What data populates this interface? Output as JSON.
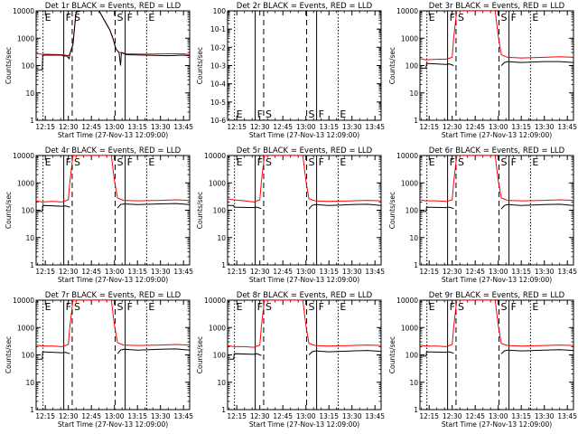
{
  "chart_data": {
    "type": "line",
    "common": {
      "xlabel": "Start Time (27-Nov-13 12:09:00)",
      "ylabel": "Counts/sec",
      "x_ticks": [
        "12:15",
        "12:30",
        "12:45",
        "13:00",
        "13:15",
        "13:30",
        "13:45"
      ],
      "x_tick_minutes": [
        15,
        30,
        45,
        60,
        75,
        90,
        105
      ],
      "xlim_minutes": [
        9,
        109
      ],
      "y_scale": "log",
      "ylim": [
        1,
        10000
      ],
      "y_ticks": [
        "1",
        "10",
        "100",
        "1000",
        "10000"
      ],
      "series_colors": {
        "events": "#000000",
        "lld": "#ff0000"
      },
      "markers": [
        {
          "label": "E",
          "minute": 13.5,
          "style": "dotted"
        },
        {
          "label": "F",
          "minute": 27,
          "style": "solid"
        },
        {
          "label": "S",
          "minute": 32.5,
          "style": "dashed"
        },
        {
          "label": "S",
          "minute": 60.5,
          "style": "dashed"
        },
        {
          "label": "F",
          "minute": 67,
          "style": "solid"
        },
        {
          "label": "E",
          "minute": 81,
          "style": "dotted"
        }
      ]
    },
    "panels": [
      {
        "title": "Det 1r BLACK = Events, RED = LLD",
        "kind": "big",
        "events": [
          [
            9,
            70
          ],
          [
            13,
            70
          ],
          [
            13.3,
            240
          ],
          [
            26,
            240
          ],
          [
            27,
            220
          ],
          [
            29,
            225
          ],
          [
            30.5,
            180
          ],
          [
            31,
            270
          ],
          [
            33,
            600
          ],
          [
            35,
            9000
          ],
          [
            38,
            10000
          ],
          [
            50,
            10000
          ],
          [
            53,
            5000
          ],
          [
            57,
            2000
          ],
          [
            59,
            1000
          ],
          [
            61,
            400
          ],
          [
            63,
            300
          ],
          [
            64,
            100
          ],
          [
            64.5,
            300
          ],
          [
            68,
            250
          ],
          [
            80,
            240
          ],
          [
            95,
            230
          ],
          [
            105,
            240
          ],
          [
            109,
            230
          ]
        ],
        "lld": [
          [
            9,
            270
          ],
          [
            13,
            260
          ],
          [
            26,
            250
          ],
          [
            30,
            230
          ],
          [
            31,
            270
          ],
          [
            33,
            600
          ],
          [
            35,
            9000
          ],
          [
            38,
            10000
          ],
          [
            50,
            10000
          ],
          [
            53,
            5000
          ],
          [
            57,
            2000
          ],
          [
            59,
            1000
          ],
          [
            61,
            400
          ],
          [
            63,
            300
          ],
          [
            64.5,
            300
          ],
          [
            68,
            270
          ],
          [
            80,
            260
          ],
          [
            95,
            270
          ],
          [
            105,
            270
          ],
          [
            109,
            250
          ]
        ]
      },
      {
        "title": "Det 2r BLACK = Events, RED = LLD",
        "kind": "empty",
        "y_ticks": [
          "10-6",
          "10-5",
          "10-4",
          "10-3",
          "10-2",
          "10-1",
          "100"
        ],
        "events": [],
        "lld": []
      },
      {
        "title": "Det 3r BLACK = Events, RED = LLD",
        "kind": "std",
        "events": [
          [
            9,
            80
          ],
          [
            13,
            80
          ],
          [
            13.3,
            120
          ],
          [
            26,
            110
          ],
          [
            28,
            115
          ],
          [
            30,
            105
          ],
          [
            31,
            100
          ]
        ],
        "events2": [
          [
            62,
            100
          ],
          [
            64,
            130
          ],
          [
            66,
            140
          ],
          [
            75,
            130
          ],
          [
            90,
            140
          ],
          [
            100,
            140
          ],
          [
            109,
            130
          ]
        ],
        "lld": [
          [
            9,
            180
          ],
          [
            13,
            160
          ],
          [
            20,
            170
          ],
          [
            26,
            170
          ],
          [
            30,
            200
          ],
          [
            31,
            1100
          ],
          [
            33,
            10000
          ],
          [
            58,
            10000
          ],
          [
            60,
            1200
          ],
          [
            62,
            250
          ],
          [
            66,
            200
          ],
          [
            75,
            190
          ],
          [
            90,
            200
          ],
          [
            100,
            210
          ],
          [
            109,
            200
          ]
        ]
      },
      {
        "title": "Det 4r BLACK = Events, RED = LLD",
        "kind": "std",
        "events": [
          [
            9,
            90
          ],
          [
            13,
            90
          ],
          [
            13.3,
            150
          ],
          [
            26,
            140
          ],
          [
            28,
            145
          ],
          [
            30,
            135
          ],
          [
            31,
            130
          ]
        ],
        "events2": [
          [
            62,
            120
          ],
          [
            64,
            160
          ],
          [
            66,
            170
          ],
          [
            75,
            160
          ],
          [
            90,
            170
          ],
          [
            100,
            175
          ],
          [
            109,
            160
          ]
        ],
        "lld": [
          [
            9,
            220
          ],
          [
            13,
            200
          ],
          [
            20,
            210
          ],
          [
            26,
            200
          ],
          [
            30,
            240
          ],
          [
            31,
            1100
          ],
          [
            33,
            10000
          ],
          [
            58,
            10000
          ],
          [
            60,
            1200
          ],
          [
            62,
            280
          ],
          [
            66,
            230
          ],
          [
            75,
            220
          ],
          [
            90,
            230
          ],
          [
            100,
            240
          ],
          [
            109,
            230
          ]
        ]
      },
      {
        "title": "Det 5r BLACK = Events, RED = LLD",
        "kind": "std",
        "events": [
          [
            9,
            150
          ],
          [
            13,
            150
          ],
          [
            13.3,
            130
          ],
          [
            26,
            125
          ],
          [
            28,
            130
          ],
          [
            30,
            120
          ],
          [
            31,
            115
          ]
        ],
        "events2": [
          [
            62,
            110
          ],
          [
            64,
            150
          ],
          [
            66,
            160
          ],
          [
            75,
            150
          ],
          [
            90,
            160
          ],
          [
            100,
            165
          ],
          [
            109,
            150
          ]
        ],
        "lld": [
          [
            9,
            260
          ],
          [
            13,
            240
          ],
          [
            20,
            220
          ],
          [
            26,
            200
          ],
          [
            30,
            240
          ],
          [
            31,
            1100
          ],
          [
            33,
            10000
          ],
          [
            58,
            10000
          ],
          [
            60,
            1200
          ],
          [
            62,
            260
          ],
          [
            66,
            220
          ],
          [
            75,
            210
          ],
          [
            90,
            220
          ],
          [
            100,
            230
          ],
          [
            109,
            220
          ]
        ]
      },
      {
        "title": "Det 6r BLACK = Events, RED = LLD",
        "kind": "std",
        "events": [
          [
            9,
            90
          ],
          [
            13,
            90
          ],
          [
            13.3,
            130
          ],
          [
            26,
            125
          ],
          [
            28,
            130
          ],
          [
            30,
            120
          ],
          [
            31,
            115
          ]
        ],
        "events2": [
          [
            62,
            110
          ],
          [
            64,
            150
          ],
          [
            66,
            160
          ],
          [
            75,
            150
          ],
          [
            90,
            160
          ],
          [
            100,
            165
          ],
          [
            109,
            150
          ]
        ],
        "lld": [
          [
            9,
            240
          ],
          [
            13,
            220
          ],
          [
            20,
            220
          ],
          [
            26,
            210
          ],
          [
            30,
            240
          ],
          [
            31,
            1100
          ],
          [
            33,
            10000
          ],
          [
            58,
            10000
          ],
          [
            60,
            1200
          ],
          [
            62,
            280
          ],
          [
            66,
            230
          ],
          [
            75,
            220
          ],
          [
            90,
            230
          ],
          [
            100,
            240
          ],
          [
            109,
            230
          ]
        ]
      },
      {
        "title": "Det 7r BLACK = Events, RED = LLD",
        "kind": "std",
        "events": [
          [
            9,
            70
          ],
          [
            13,
            70
          ],
          [
            13.3,
            130
          ],
          [
            26,
            120
          ],
          [
            28,
            125
          ],
          [
            30,
            115
          ],
          [
            31,
            110
          ]
        ],
        "events2": [
          [
            62,
            110
          ],
          [
            64,
            150
          ],
          [
            66,
            160
          ],
          [
            75,
            150
          ],
          [
            90,
            160
          ],
          [
            100,
            165
          ],
          [
            109,
            150
          ]
        ],
        "lld": [
          [
            9,
            230
          ],
          [
            13,
            210
          ],
          [
            20,
            210
          ],
          [
            26,
            200
          ],
          [
            30,
            240
          ],
          [
            31,
            1100
          ],
          [
            33,
            10000
          ],
          [
            58,
            10000
          ],
          [
            60,
            1200
          ],
          [
            62,
            280
          ],
          [
            66,
            230
          ],
          [
            75,
            220
          ],
          [
            90,
            230
          ],
          [
            100,
            240
          ],
          [
            109,
            230
          ]
        ]
      },
      {
        "title": "Det 8r BLACK = Events, RED = LLD",
        "kind": "std",
        "events": [
          [
            9,
            70
          ],
          [
            13,
            70
          ],
          [
            13.3,
            110
          ],
          [
            26,
            105
          ],
          [
            28,
            110
          ],
          [
            30,
            100
          ],
          [
            31,
            95
          ]
        ],
        "events2": [
          [
            62,
            100
          ],
          [
            64,
            130
          ],
          [
            66,
            140
          ],
          [
            75,
            130
          ],
          [
            90,
            140
          ],
          [
            100,
            145
          ],
          [
            109,
            135
          ]
        ],
        "lld": [
          [
            9,
            220
          ],
          [
            13,
            200
          ],
          [
            20,
            200
          ],
          [
            26,
            190
          ],
          [
            30,
            230
          ],
          [
            31,
            1100
          ],
          [
            33,
            10000
          ],
          [
            58,
            10000
          ],
          [
            60,
            1200
          ],
          [
            62,
            260
          ],
          [
            66,
            220
          ],
          [
            75,
            210
          ],
          [
            90,
            220
          ],
          [
            100,
            230
          ],
          [
            109,
            220
          ]
        ]
      },
      {
        "title": "Det 9r BLACK = Events, RED = LLD",
        "kind": "std",
        "events": [
          [
            9,
            90
          ],
          [
            13,
            90
          ],
          [
            13.3,
            130
          ],
          [
            26,
            125
          ],
          [
            28,
            130
          ],
          [
            30,
            120
          ],
          [
            31,
            115
          ]
        ],
        "events2": [
          [
            62,
            110
          ],
          [
            64,
            140
          ],
          [
            66,
            150
          ],
          [
            75,
            140
          ],
          [
            90,
            150
          ],
          [
            100,
            155
          ],
          [
            109,
            145
          ]
        ],
        "lld": [
          [
            9,
            230
          ],
          [
            13,
            210
          ],
          [
            20,
            210
          ],
          [
            26,
            200
          ],
          [
            30,
            240
          ],
          [
            31,
            1100
          ],
          [
            33,
            10000
          ],
          [
            58,
            10000
          ],
          [
            60,
            1200
          ],
          [
            62,
            260
          ],
          [
            66,
            220
          ],
          [
            75,
            210
          ],
          [
            90,
            220
          ],
          [
            100,
            230
          ],
          [
            109,
            220
          ]
        ]
      }
    ]
  }
}
